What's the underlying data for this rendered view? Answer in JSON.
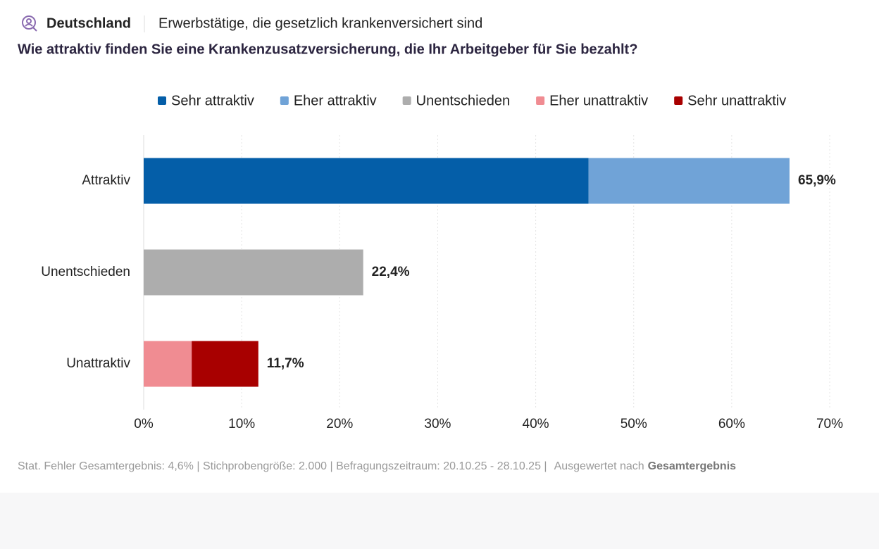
{
  "header": {
    "country": "Deutschland",
    "population": "Erwerbstätige, die gesetzlich krankenversichert sind"
  },
  "chart_data": {
    "type": "stacked-bar-horizontal",
    "title": "Wie attraktiv finden Sie eine Krankenzusatzversicherung, die Ihr Arbeitgeber für Sie bezahlt?",
    "categories": [
      "Attraktiv",
      "Unentschieden",
      "Unattraktiv"
    ],
    "series": [
      {
        "name": "Sehr attraktiv",
        "color": "#045ea8",
        "values": [
          45.4,
          null,
          null
        ]
      },
      {
        "name": "Eher attraktiv",
        "color": "#70a3d7",
        "values": [
          20.5,
          null,
          null
        ]
      },
      {
        "name": "Unentschieden",
        "color": "#adadad",
        "values": [
          null,
          22.4,
          null
        ]
      },
      {
        "name": "Eher unattraktiv",
        "color": "#f08c92",
        "values": [
          null,
          null,
          4.9
        ]
      },
      {
        "name": "Sehr unattraktiv",
        "color": "#a80000",
        "values": [
          null,
          null,
          6.8
        ]
      }
    ],
    "totals": [
      65.9,
      22.4,
      11.7
    ],
    "total_labels": [
      "65,9%",
      "22,4%",
      "11,7%"
    ],
    "xlim": [
      0,
      70
    ],
    "xticks": [
      {
        "value": 0,
        "label": "0%"
      },
      {
        "value": 10,
        "label": "10%"
      },
      {
        "value": 20,
        "label": "20%"
      },
      {
        "value": 30,
        "label": "30%"
      },
      {
        "value": 40,
        "label": "40%"
      },
      {
        "value": 50,
        "label": "50%"
      },
      {
        "value": 60,
        "label": "60%"
      },
      {
        "value": 70,
        "label": "70%"
      }
    ],
    "grid": true
  },
  "footer": {
    "info": "Stat. Fehler Gesamtergebnis: 4,6% | Stichprobengröße: 2.000 | Befragungszeitraum: 20.10.25 - 28.10.25 |",
    "evaluated_by": "Ausgewertet nach",
    "evaluation": "Gesamtergebnis"
  }
}
